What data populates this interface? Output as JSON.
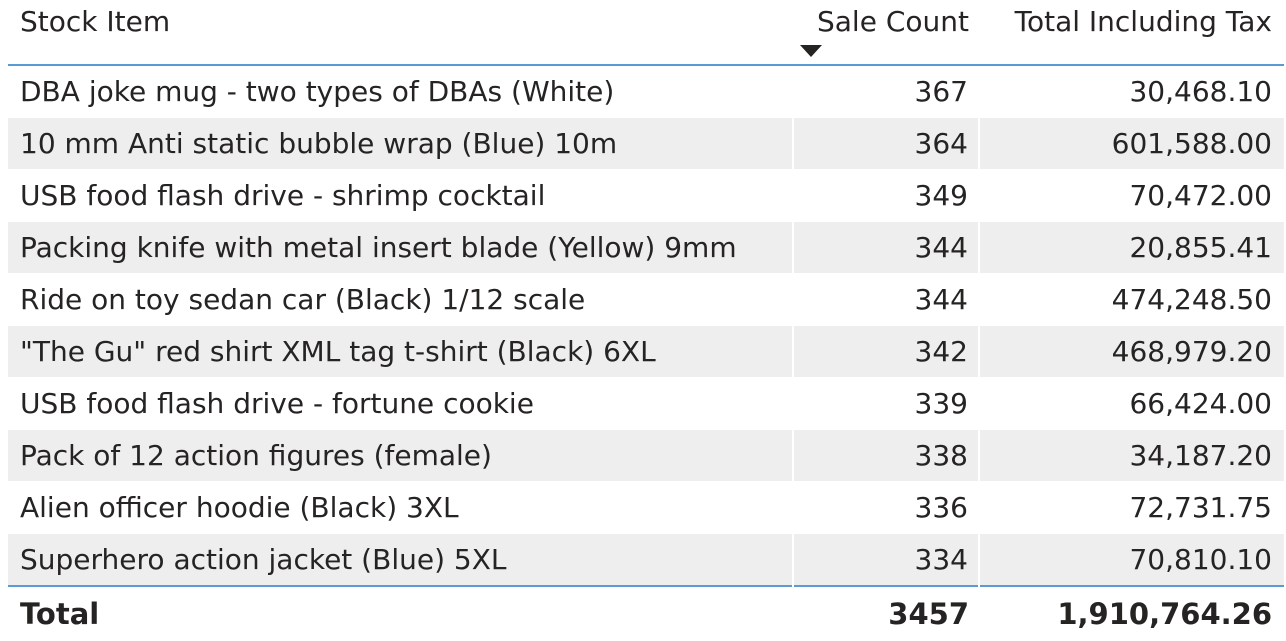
{
  "table": {
    "headers": {
      "stock_item": "Stock Item",
      "sale_count": "Sale Count",
      "total_including_tax": "Total Including Tax"
    },
    "sort": {
      "column": "sale_count",
      "direction": "descending"
    },
    "rows": [
      {
        "stock_item": "DBA joke mug - two types of DBAs (White)",
        "sale_count": "367",
        "total_including_tax": "30,468.10"
      },
      {
        "stock_item": "10 mm Anti static bubble wrap (Blue) 10m",
        "sale_count": "364",
        "total_including_tax": "601,588.00"
      },
      {
        "stock_item": "USB food flash drive - shrimp cocktail",
        "sale_count": "349",
        "total_including_tax": "70,472.00"
      },
      {
        "stock_item": "Packing knife with metal insert blade (Yellow) 9mm",
        "sale_count": "344",
        "total_including_tax": "20,855.41"
      },
      {
        "stock_item": "Ride on toy sedan car (Black) 1/12 scale",
        "sale_count": "344",
        "total_including_tax": "474,248.50"
      },
      {
        "stock_item": "\"The Gu\" red shirt XML tag t-shirt (Black) 6XL",
        "sale_count": "342",
        "total_including_tax": "468,979.20"
      },
      {
        "stock_item": "USB food flash drive - fortune cookie",
        "sale_count": "339",
        "total_including_tax": "66,424.00"
      },
      {
        "stock_item": "Pack of 12 action figures (female)",
        "sale_count": "338",
        "total_including_tax": "34,187.20"
      },
      {
        "stock_item": "Alien officer hoodie (Black) 3XL",
        "sale_count": "336",
        "total_including_tax": "72,731.75"
      },
      {
        "stock_item": "Superhero action jacket (Blue) 5XL",
        "sale_count": "334",
        "total_including_tax": "70,810.10"
      }
    ],
    "total": {
      "label": "Total",
      "sale_count": "3457",
      "total_including_tax": "1,910,764.26"
    }
  },
  "colors": {
    "header_rule": "#5b9bd5",
    "alt_row": "#eeeeee",
    "text": "#252423"
  },
  "icons": {
    "sort_indicator": "sort-descending-icon"
  }
}
